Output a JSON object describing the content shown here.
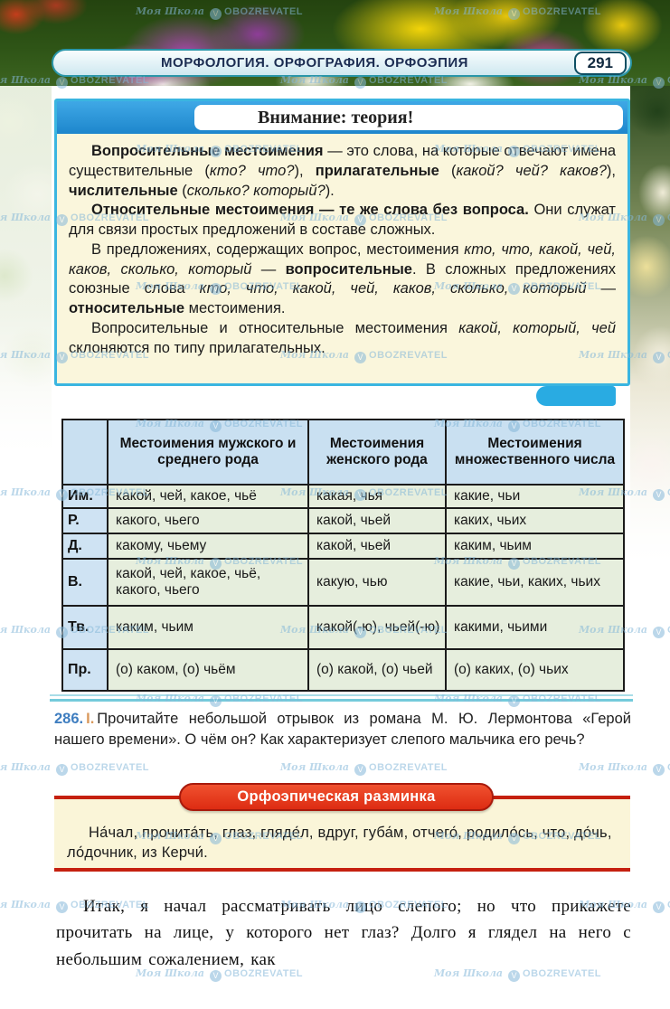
{
  "header": {
    "title": "МОРФОЛОГИЯ. ОРФОГРАФИЯ. ОРФОЭПИЯ",
    "page_number": "291"
  },
  "theory": {
    "title": "Внимание: теория!",
    "paragraphs": [
      [
        {
          "t": "Вопросительные местоимения",
          "b": 1
        },
        {
          "t": " — это слова, на которые отвечают имена существительные ("
        },
        {
          "t": "кто? что?",
          "i": 1
        },
        {
          "t": "), "
        },
        {
          "t": "прилагательные",
          "b": 1
        },
        {
          "t": " ("
        },
        {
          "t": "какой? чей? каков?",
          "i": 1
        },
        {
          "t": "), "
        },
        {
          "t": "числительные",
          "b": 1
        },
        {
          "t": " ("
        },
        {
          "t": "сколько? который?",
          "i": 1
        },
        {
          "t": ")."
        }
      ],
      [
        {
          "t": "Относительные местоимения — те же слова без вопроса.",
          "b": 1
        },
        {
          "t": " Они служат для связи простых предложений в составе сложных."
        }
      ],
      [
        {
          "t": "В предложениях, содержащих вопрос, местоимения "
        },
        {
          "t": "кто, что, какой, чей, каков, сколько, который",
          "i": 1
        },
        {
          "t": " — "
        },
        {
          "t": "вопросительные",
          "b": 1
        },
        {
          "t": ". В сложных предложениях союзные слова "
        },
        {
          "t": "кто, что, какой, чей, каков, сколько, который",
          "i": 1
        },
        {
          "t": " — "
        },
        {
          "t": "относительные",
          "b": 1
        },
        {
          "t": " местоимения."
        }
      ],
      [
        {
          "t": "Вопросительные и относительные местоимения "
        },
        {
          "t": "какой, который, чей",
          "i": 1
        },
        {
          "t": " склоняются по типу прилагательных."
        }
      ]
    ]
  },
  "table": {
    "col_headers": [
      "",
      "Местоимения мужского и среднего рода",
      "Местоимения женского рода",
      "Местоимения множественного числа"
    ],
    "rows": [
      {
        "case": "Им.",
        "m": "какой, чей, какое, чьё",
        "f": "какая, чья",
        "pl": "какие, чьи"
      },
      {
        "case": "Р.",
        "m": "какого, чьего",
        "f": "какой, чьей",
        "pl": "каких, чьих"
      },
      {
        "case": "Д.",
        "m": "какому, чьему",
        "f": "какой, чьей",
        "pl": "каким, чьим"
      },
      {
        "case": "В.",
        "m": "какой, чей, какое, чьё, какого, чьего",
        "f": "какую, чью",
        "pl": "какие, чьи, каких, чьих"
      },
      {
        "case": "Тв.",
        "m": "каким, чьим",
        "f": "какой(-ю), чьей(-ю)",
        "pl": "какими, чьими"
      },
      {
        "case": "Пр.",
        "m": "(о) каком, (о) чьём",
        "f": "(о) какой, (о) чьей",
        "pl": "(о) каких, (о) чьих"
      }
    ]
  },
  "exercise": {
    "number": "286.",
    "part": "I.",
    "text": "Прочитайте небольшой отрывок из романа М. Ю. Лермонтова «Герой нашего времени». О чём он? Как характеризует слепого мальчика его речь?"
  },
  "warmup": {
    "title": "Орфоэпическая разминка",
    "words": "На́чал, прочита́ть, глаз, гляде́л, вдруг, губа́м, отчего́, родило́сь, что, до́чь, ло́дочник, из Керчи́."
  },
  "passage": "Итак, я начал рассматривать лицо слепого; но что прикажете прочитать на лице, у которого нет глаз? Долго я глядел на него с небольшим сожалением, как",
  "watermark": {
    "site": "Моя Школа",
    "brand": "OBOZREVATEL"
  },
  "colors": {
    "theory_border_cyan": "#3ab5e0",
    "theory_bar_blue": "#2196d9",
    "box_yellow": "#faf5d8",
    "banner_red": "#dd2c12",
    "table_header_blue": "#c9e0f1",
    "table_body_green": "#e6eedd",
    "divider_cyan": "#74cbdb",
    "exercise_number_blue": "#3f7ec0",
    "exercise_part_orange": "#d9995c",
    "watermark_blue": "#85b8d9"
  }
}
